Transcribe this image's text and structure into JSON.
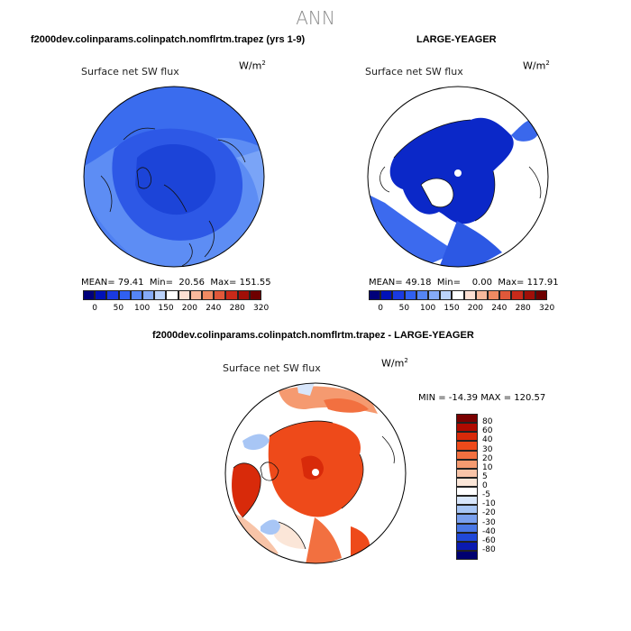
{
  "figure": {
    "title": "ANN",
    "left_title": "f2000dev.colinparams.colinpatch.nomflrtm.trapez (yrs 1-9)",
    "right_title": "LARGE-YEAGER",
    "diff_title": "f2000dev.colinparams.colinpatch.nomflrtm.trapez - LARGE-YEAGER"
  },
  "chart_data": [
    {
      "type": "heatmap",
      "projection": "north-polar-stereographic",
      "variable": "Surface net SW flux",
      "units_base": "W/m",
      "units_exp": "2",
      "mean_label": "MEAN=",
      "mean": "79.41",
      "min_label": "Min=",
      "min": "20.56",
      "max_label": "Max=",
      "max": "151.55",
      "colorbar_ticks": [
        "0",
        "50",
        "100",
        "150",
        "200",
        "240",
        "280",
        "320"
      ],
      "colorbar_colors": [
        "#00007a",
        "#0011b8",
        "#1a3ae0",
        "#3060f0",
        "#5585f5",
        "#85abf8",
        "#bcd3fb",
        "#ffffff",
        "#fde0d3",
        "#f8b99c",
        "#f08a62",
        "#e0583a",
        "#c82a1a",
        "#a00f08",
        "#6e0000"
      ]
    },
    {
      "type": "heatmap",
      "projection": "north-polar-stereographic",
      "variable": "Surface net SW flux",
      "units_base": "W/m",
      "units_exp": "2",
      "mean_label": "MEAN=",
      "mean": "49.18",
      "min_label": "Min=",
      "min": "0.00",
      "max_label": "Max=",
      "max": "117.91",
      "colorbar_ticks": [
        "0",
        "50",
        "100",
        "150",
        "200",
        "240",
        "280",
        "320"
      ],
      "colorbar_colors": [
        "#00007a",
        "#0011b8",
        "#1a3ae0",
        "#3060f0",
        "#5585f5",
        "#85abf8",
        "#bcd3fb",
        "#ffffff",
        "#fde0d3",
        "#f8b99c",
        "#f08a62",
        "#e0583a",
        "#c82a1a",
        "#a00f08",
        "#6e0000"
      ]
    },
    {
      "type": "heatmap",
      "projection": "north-polar-stereographic",
      "variable": "Surface net SW flux",
      "units_base": "W/m",
      "units_exp": "2",
      "minmax_label": "MIN = -14.39 MAX = 120.57",
      "min": "-14.39",
      "max": "120.57",
      "colorbar_ticks": [
        "80",
        "60",
        "40",
        "30",
        "20",
        "10",
        "5",
        "0",
        "-5",
        "-10",
        "-20",
        "-30",
        "-40",
        "-60",
        "-80"
      ],
      "colorbar_colors": [
        "#7a0000",
        "#b00a00",
        "#d82a0a",
        "#ee4a1a",
        "#f27040",
        "#f59a70",
        "#f8c4a8",
        "#fbe6d8",
        "#ffffff",
        "#d8e6fb",
        "#a8c6f5",
        "#7aa0ee",
        "#4a78e6",
        "#2048d8",
        "#0a1ab0",
        "#000070"
      ]
    }
  ]
}
